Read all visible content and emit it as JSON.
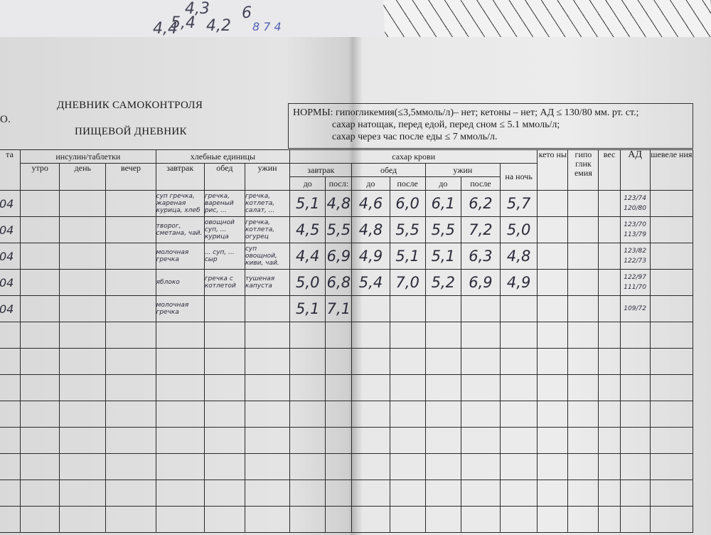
{
  "background": {
    "scribbles": [
      "4,3",
      "4,4",
      "5,4",
      "4,2",
      "6",
      "8 7 4"
    ]
  },
  "header": {
    "title": "ДНЕВНИК САМОКОНТРОЛЯ",
    "name_fragment": "О.",
    "subtitle": "ПИЩЕВОЙ ДНЕВНИК",
    "norms": [
      "НОРМЫ: гипогликемия(≤3,5ммоль/л)– нет; кетоны – нет; АД ≤ 130/80 мм. рт. ст.;",
      "сахар натощак, перед едой, перед сном ≤ 5.1 ммоль/л;",
      "сахар через час после еды  ≤ 7 ммоль/л."
    ]
  },
  "columns": {
    "date": "та",
    "insulin": "инсулин/таблетки",
    "insulin_sub": [
      "утро",
      "день",
      "вечер"
    ],
    "bread_units": "хлебные единицы",
    "bread_sub": [
      "завтрак",
      "обед",
      "ужин"
    ],
    "blood_sugar": "сахар крови",
    "sugar_meals": [
      "завтрак",
      "обед",
      "ужин"
    ],
    "night": "на ночь",
    "before": "до",
    "after": [
      "посл:",
      "после",
      "после"
    ],
    "ketones": "кето ны",
    "hypo": "гипо глик емия",
    "weight": "вес",
    "bp": "АД",
    "movements": "шевеле ния"
  },
  "rows": [
    {
      "date": "04",
      "breakfast": "суп гречка, жареная курица, хлеб",
      "lunch": "гречка, вареный рис, ...",
      "dinner": "гречка, котлета, салат, ...",
      "sugar": [
        "5,1",
        "4,8",
        "4,6",
        "6,0",
        "6,1",
        "6,2",
        "5,7"
      ],
      "bp": [
        "123/74",
        "120/80"
      ]
    },
    {
      "date": "04",
      "breakfast": "творог, сметана, чай.",
      "lunch": "овощной суп, ... курица",
      "dinner": "гречка, котлета, огурец",
      "sugar": [
        "4,5",
        "5,5",
        "4,8",
        "5,5",
        "5,5",
        "7,2",
        "5,0"
      ],
      "bp": [
        "123/70",
        "113/79"
      ]
    },
    {
      "date": "04",
      "breakfast": "молочная гречка",
      "lunch": "... суп, ... сыр",
      "dinner": "суп овощной, киви, чай.",
      "sugar": [
        "4,4",
        "6,9",
        "4,9",
        "5,1",
        "5,1",
        "6,3",
        "4,8"
      ],
      "bp": [
        "123/82",
        "122/73"
      ]
    },
    {
      "date": "04",
      "breakfast": "яблоко",
      "lunch": "гречка с котлетой",
      "dinner": "тушеная капуста",
      "sugar": [
        "5,0",
        "6,8",
        "5,4",
        "7,0",
        "5,2",
        "6,9",
        "4,9"
      ],
      "bp": [
        "122/97",
        "111/70"
      ]
    },
    {
      "date": "04",
      "breakfast": "молочная гречка",
      "lunch": "",
      "dinner": "",
      "sugar": [
        "5,1",
        "7,1",
        "",
        "",
        "",
        "",
        ""
      ],
      "bp": [
        "109/72",
        ""
      ]
    }
  ],
  "empty_rows": 8
}
